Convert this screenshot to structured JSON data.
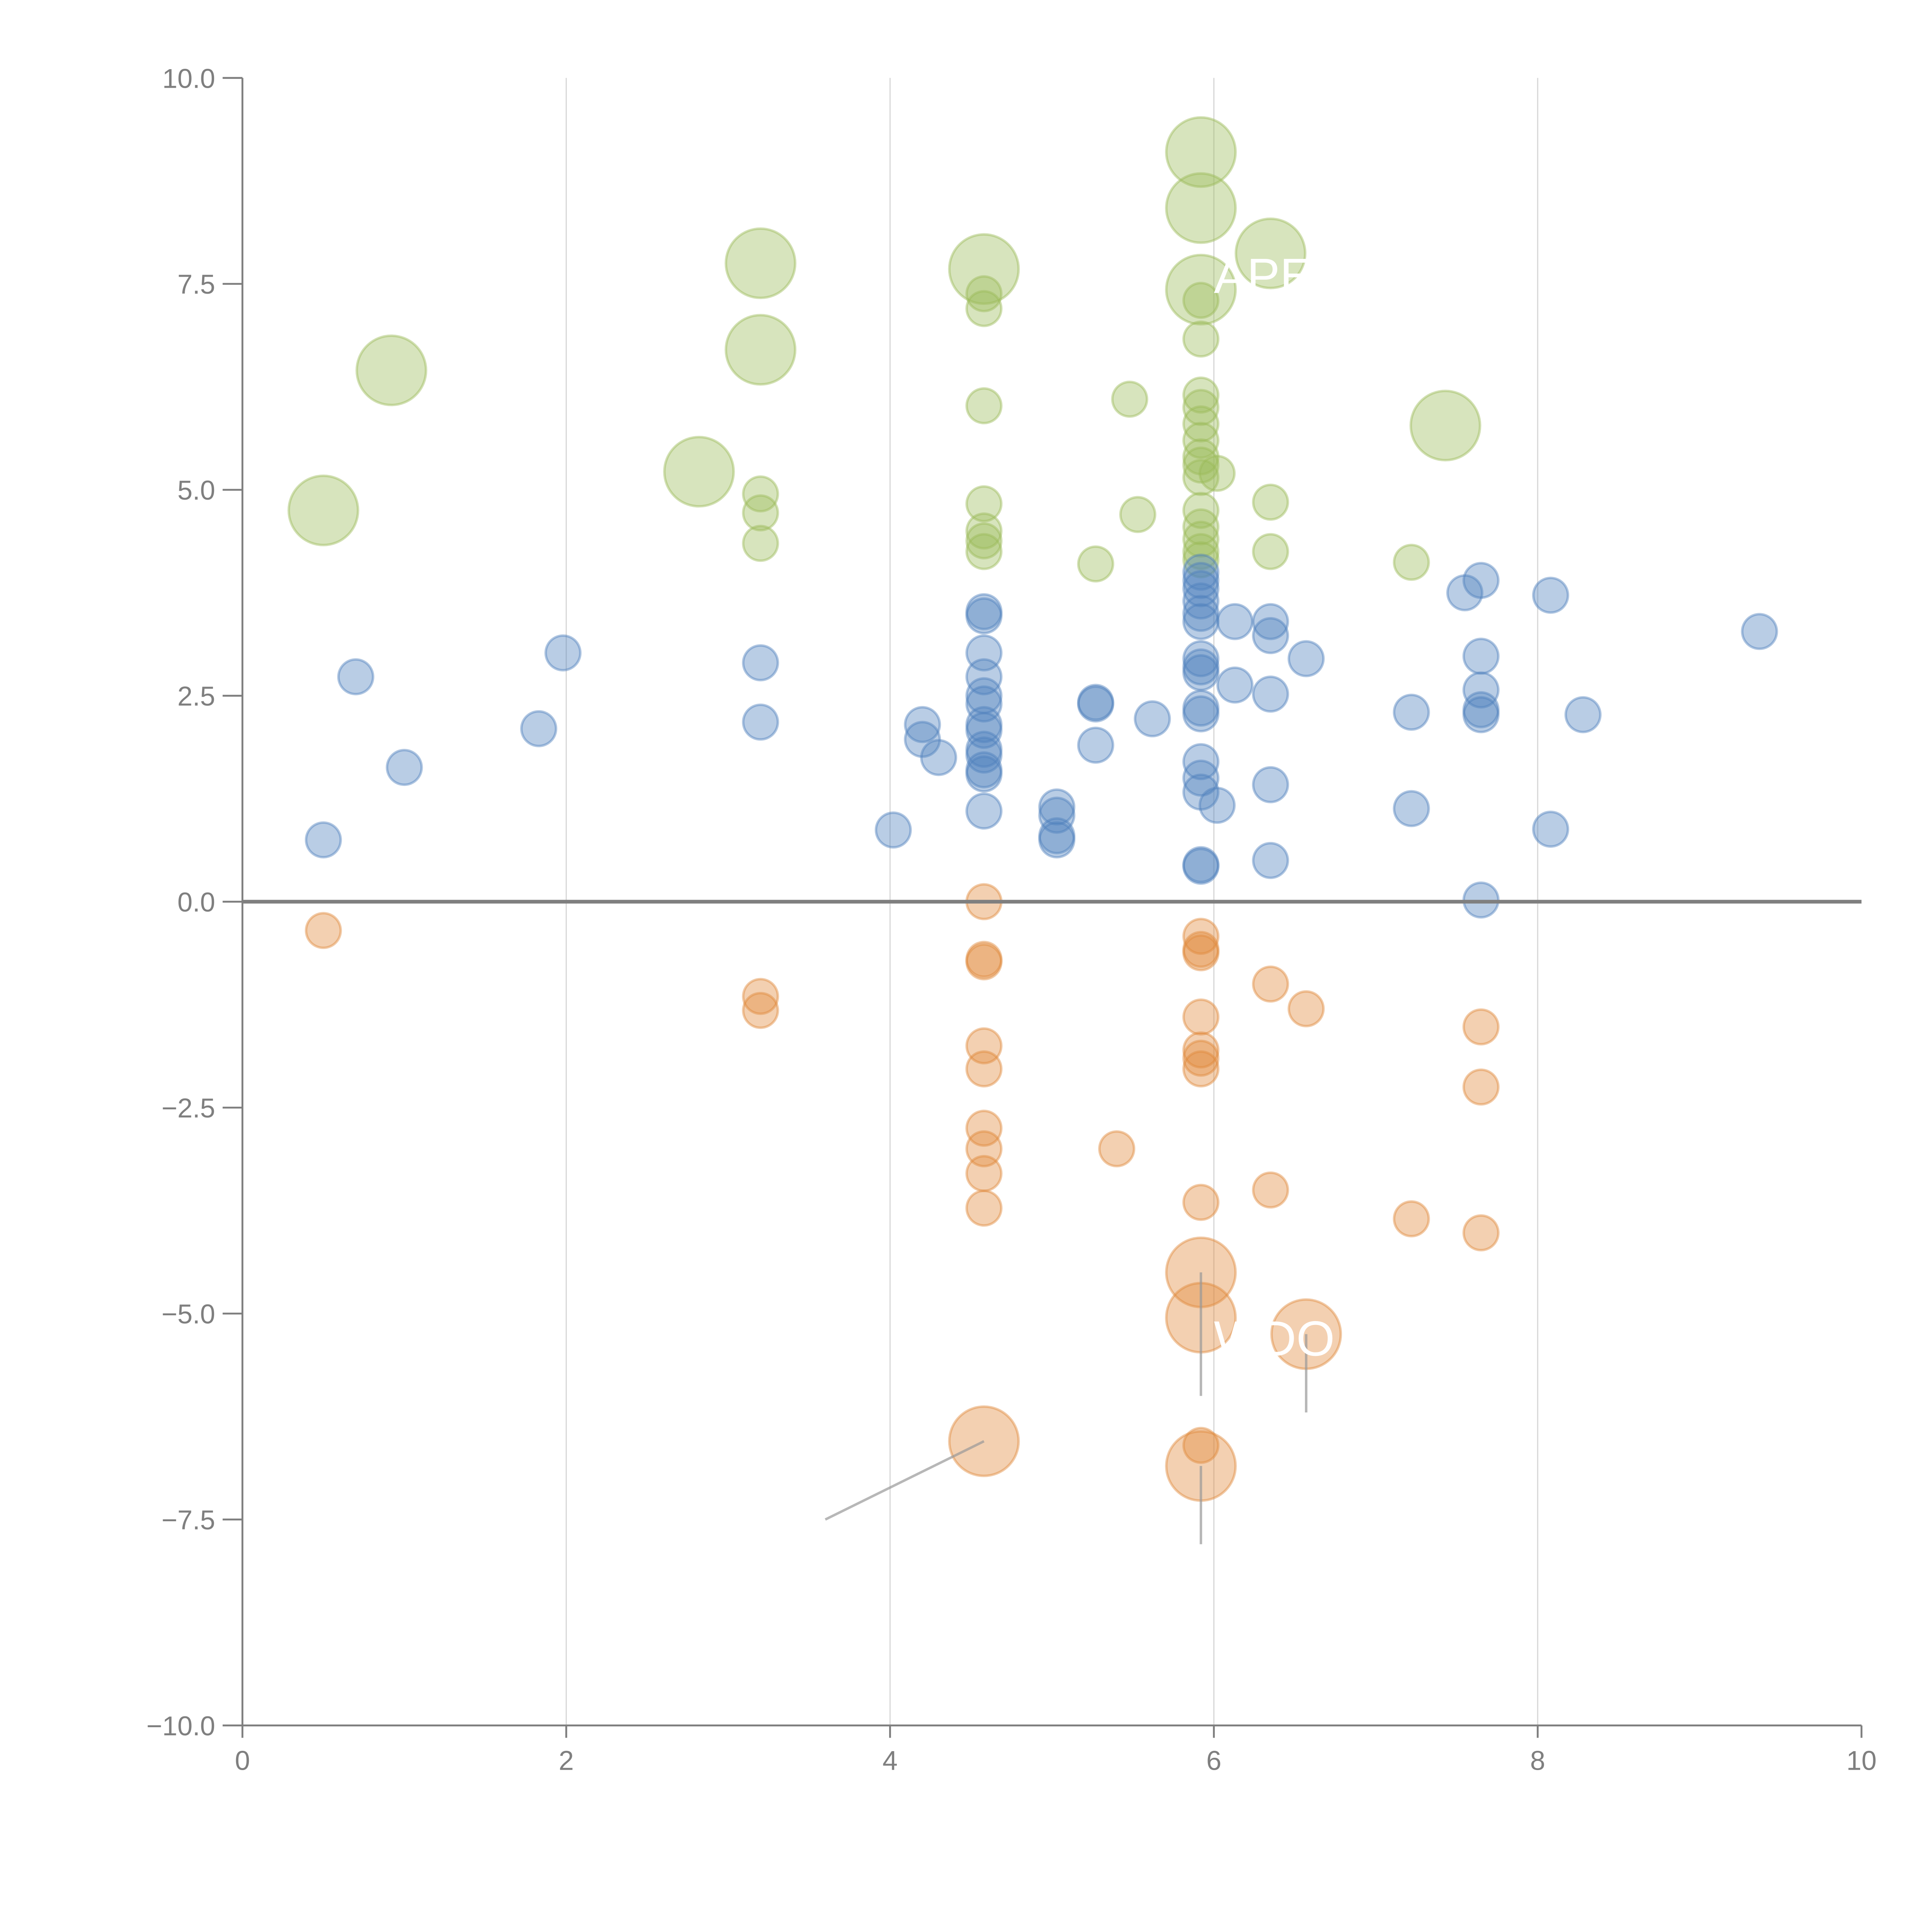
{
  "chart_data": {
    "type": "scatter",
    "title": "",
    "xlabel": "",
    "ylabel": "",
    "xlim": [
      0,
      10
    ],
    "ylim": [
      -10,
      10
    ],
    "x_ticks": [
      "0",
      "2",
      "4",
      "6",
      "8",
      "10"
    ],
    "y_ticks": [
      "10.0",
      "7.5",
      "5.0",
      "2.5",
      "0.0",
      "−2.5",
      "−5.0",
      "−7.5",
      "−10.0"
    ],
    "grid": "vertical",
    "zero_line": true,
    "colors": {
      "green": "#9bbb59",
      "blue": "#4f81bd",
      "orange": "#e08a3c",
      "axis": "#7f7f7f",
      "grid": "#d9d9d9"
    },
    "annotations": [
      {
        "text": "APE",
        "x": 6.0,
        "y": 7.6
      },
      {
        "text": "WDO",
        "x": 6.0,
        "y": -5.3
      }
    ],
    "series": [
      {
        "name": "green",
        "color": "#9bbb59",
        "points": [
          {
            "x": 0.5,
            "y": 4.75,
            "big": true
          },
          {
            "x": 0.92,
            "y": 6.45,
            "big": true
          },
          {
            "x": 2.82,
            "y": 5.22,
            "big": true
          },
          {
            "x": 3.2,
            "y": 7.75,
            "big": true
          },
          {
            "x": 3.2,
            "y": 6.7,
            "big": true
          },
          {
            "x": 4.58,
            "y": 7.68,
            "big": true
          },
          {
            "x": 5.92,
            "y": 9.1,
            "big": true
          },
          {
            "x": 5.92,
            "y": 8.42,
            "big": true
          },
          {
            "x": 5.92,
            "y": 7.43,
            "big": true
          },
          {
            "x": 6.35,
            "y": 7.87,
            "big": true
          },
          {
            "x": 7.43,
            "y": 5.78,
            "big": true
          },
          {
            "x": 3.2,
            "y": 4.95
          },
          {
            "x": 3.2,
            "y": 4.72
          },
          {
            "x": 3.2,
            "y": 4.35
          },
          {
            "x": 4.58,
            "y": 7.38
          },
          {
            "x": 4.58,
            "y": 7.2
          },
          {
            "x": 4.58,
            "y": 6.02
          },
          {
            "x": 4.58,
            "y": 4.83
          },
          {
            "x": 4.58,
            "y": 4.5
          },
          {
            "x": 4.58,
            "y": 4.38
          },
          {
            "x": 4.58,
            "y": 4.25
          },
          {
            "x": 5.27,
            "y": 4.1
          },
          {
            "x": 5.48,
            "y": 6.1
          },
          {
            "x": 5.53,
            "y": 4.7
          },
          {
            "x": 5.92,
            "y": 7.3
          },
          {
            "x": 5.92,
            "y": 6.83
          },
          {
            "x": 5.92,
            "y": 6.15
          },
          {
            "x": 5.92,
            "y": 6.0
          },
          {
            "x": 5.92,
            "y": 5.8
          },
          {
            "x": 5.92,
            "y": 5.6
          },
          {
            "x": 5.92,
            "y": 5.4
          },
          {
            "x": 5.92,
            "y": 5.3
          },
          {
            "x": 5.92,
            "y": 5.15
          },
          {
            "x": 6.02,
            "y": 5.2
          },
          {
            "x": 5.92,
            "y": 4.75
          },
          {
            "x": 5.92,
            "y": 4.55
          },
          {
            "x": 5.92,
            "y": 4.4
          },
          {
            "x": 5.92,
            "y": 4.25
          },
          {
            "x": 5.92,
            "y": 4.15
          },
          {
            "x": 6.35,
            "y": 4.85
          },
          {
            "x": 6.35,
            "y": 4.25
          },
          {
            "x": 7.22,
            "y": 4.12
          }
        ]
      },
      {
        "name": "blue",
        "color": "#4f81bd",
        "points": [
          {
            "x": 0.5,
            "y": 0.75
          },
          {
            "x": 0.7,
            "y": 2.73
          },
          {
            "x": 1.0,
            "y": 1.63
          },
          {
            "x": 1.83,
            "y": 2.1
          },
          {
            "x": 1.98,
            "y": 3.02
          },
          {
            "x": 3.2,
            "y": 2.9
          },
          {
            "x": 3.2,
            "y": 2.18
          },
          {
            "x": 4.02,
            "y": 0.87
          },
          {
            "x": 4.2,
            "y": 2.15
          },
          {
            "x": 4.2,
            "y": 1.97
          },
          {
            "x": 4.3,
            "y": 1.75
          },
          {
            "x": 4.58,
            "y": 3.52
          },
          {
            "x": 4.58,
            "y": 3.47
          },
          {
            "x": 4.58,
            "y": 3.02
          },
          {
            "x": 4.58,
            "y": 2.73
          },
          {
            "x": 4.58,
            "y": 2.5
          },
          {
            "x": 4.58,
            "y": 2.4
          },
          {
            "x": 4.58,
            "y": 2.15
          },
          {
            "x": 4.58,
            "y": 2.08
          },
          {
            "x": 4.58,
            "y": 1.85
          },
          {
            "x": 4.58,
            "y": 1.78
          },
          {
            "x": 4.58,
            "y": 1.6
          },
          {
            "x": 4.58,
            "y": 1.55
          },
          {
            "x": 4.58,
            "y": 1.1
          },
          {
            "x": 5.03,
            "y": 1.15
          },
          {
            "x": 5.03,
            "y": 1.05
          },
          {
            "x": 5.03,
            "y": 0.8
          },
          {
            "x": 5.03,
            "y": 0.75
          },
          {
            "x": 5.27,
            "y": 2.42
          },
          {
            "x": 5.27,
            "y": 2.4
          },
          {
            "x": 5.27,
            "y": 1.9
          },
          {
            "x": 5.62,
            "y": 2.22
          },
          {
            "x": 5.92,
            "y": 4.0
          },
          {
            "x": 5.92,
            "y": 3.9
          },
          {
            "x": 5.92,
            "y": 3.8
          },
          {
            "x": 5.92,
            "y": 3.65
          },
          {
            "x": 5.92,
            "y": 3.5
          },
          {
            "x": 5.92,
            "y": 3.4
          },
          {
            "x": 5.92,
            "y": 2.95
          },
          {
            "x": 5.92,
            "y": 2.85
          },
          {
            "x": 5.92,
            "y": 2.78
          },
          {
            "x": 5.92,
            "y": 2.35
          },
          {
            "x": 5.92,
            "y": 2.28
          },
          {
            "x": 5.92,
            "y": 1.7
          },
          {
            "x": 5.92,
            "y": 1.5
          },
          {
            "x": 5.92,
            "y": 1.33
          },
          {
            "x": 5.92,
            "y": 0.45
          },
          {
            "x": 5.92,
            "y": 0.43
          },
          {
            "x": 6.02,
            "y": 1.17
          },
          {
            "x": 6.13,
            "y": 3.4
          },
          {
            "x": 6.13,
            "y": 2.63
          },
          {
            "x": 6.35,
            "y": 3.4
          },
          {
            "x": 6.35,
            "y": 3.23
          },
          {
            "x": 6.35,
            "y": 2.52
          },
          {
            "x": 6.35,
            "y": 1.42
          },
          {
            "x": 6.35,
            "y": 0.5
          },
          {
            "x": 6.57,
            "y": 2.95
          },
          {
            "x": 7.22,
            "y": 2.3
          },
          {
            "x": 7.22,
            "y": 1.13
          },
          {
            "x": 7.55,
            "y": 3.75
          },
          {
            "x": 7.65,
            "y": 3.9
          },
          {
            "x": 7.65,
            "y": 2.98
          },
          {
            "x": 7.65,
            "y": 2.57
          },
          {
            "x": 7.65,
            "y": 2.33
          },
          {
            "x": 7.65,
            "y": 2.27
          },
          {
            "x": 7.65,
            "y": 0.02
          },
          {
            "x": 8.08,
            "y": 3.72
          },
          {
            "x": 8.08,
            "y": 0.88
          },
          {
            "x": 8.28,
            "y": 2.27
          },
          {
            "x": 9.37,
            "y": 3.28
          }
        ]
      },
      {
        "name": "orange",
        "color": "#e08a3c",
        "points": [
          {
            "x": 4.58,
            "y": -6.55,
            "big": true
          },
          {
            "x": 5.92,
            "y": -4.5,
            "big": true
          },
          {
            "x": 5.92,
            "y": -5.05,
            "big": true
          },
          {
            "x": 6.57,
            "y": -5.25,
            "big": true
          },
          {
            "x": 5.92,
            "y": -6.85,
            "big": true
          },
          {
            "x": 0.5,
            "y": -0.35
          },
          {
            "x": 3.2,
            "y": -1.15
          },
          {
            "x": 3.2,
            "y": -1.32
          },
          {
            "x": 4.58,
            "y": 0.0
          },
          {
            "x": 4.58,
            "y": -0.7
          },
          {
            "x": 4.58,
            "y": -0.73
          },
          {
            "x": 4.58,
            "y": -1.75
          },
          {
            "x": 4.58,
            "y": -2.03
          },
          {
            "x": 4.58,
            "y": -2.75
          },
          {
            "x": 4.58,
            "y": -3.0
          },
          {
            "x": 4.58,
            "y": -3.3
          },
          {
            "x": 4.58,
            "y": -3.72
          },
          {
            "x": 5.4,
            "y": -3.0
          },
          {
            "x": 5.92,
            "y": -0.42
          },
          {
            "x": 5.92,
            "y": -0.58
          },
          {
            "x": 5.92,
            "y": -0.62
          },
          {
            "x": 5.92,
            "y": -1.4
          },
          {
            "x": 5.92,
            "y": -1.8
          },
          {
            "x": 5.92,
            "y": -1.9
          },
          {
            "x": 5.92,
            "y": -2.03
          },
          {
            "x": 5.92,
            "y": -3.65
          },
          {
            "x": 5.92,
            "y": -6.6
          },
          {
            "x": 6.35,
            "y": -1.0
          },
          {
            "x": 6.35,
            "y": -3.5
          },
          {
            "x": 6.57,
            "y": -1.3
          },
          {
            "x": 7.22,
            "y": -3.85
          },
          {
            "x": 7.65,
            "y": -1.52
          },
          {
            "x": 7.65,
            "y": -2.25
          },
          {
            "x": 7.65,
            "y": -4.02
          }
        ]
      }
    ]
  }
}
